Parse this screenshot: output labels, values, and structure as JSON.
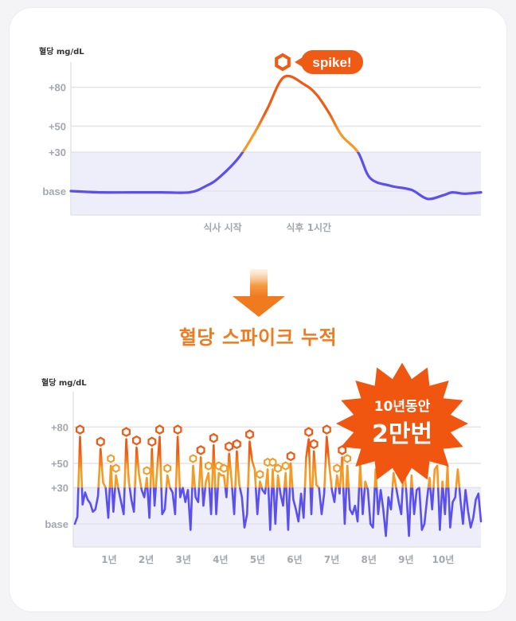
{
  "headline": "혈당 스파이크 누적",
  "colors": {
    "low": "#5b4ff0",
    "mid": "#f59a24",
    "high": "#ef5a14",
    "band": "#eeeefa",
    "grid": "#e3e3e8"
  },
  "chart_data": [
    {
      "type": "line",
      "ylabel": "혈당 mg/dL",
      "y_ticks": [
        "+80",
        "+50",
        "+30",
        "base"
      ],
      "y_tick_values": [
        80,
        50,
        30,
        0
      ],
      "x_labels": [
        "식사 시작",
        "식후 1시간"
      ],
      "x_label_positions": [
        0.37,
        0.58
      ],
      "annotation": "spike!",
      "x": [
        0.0,
        0.07,
        0.15,
        0.22,
        0.29,
        0.33,
        0.36,
        0.41,
        0.45,
        0.48,
        0.52,
        0.57,
        0.6,
        0.63,
        0.66,
        0.7,
        0.73,
        0.78,
        0.83,
        0.87,
        0.91,
        0.93,
        0.96,
        1.0
      ],
      "values": [
        0,
        -1,
        -1,
        -1,
        -1,
        4,
        10,
        26,
        46,
        64,
        88,
        82,
        74,
        60,
        43,
        30,
        10,
        4,
        1,
        -6,
        -3,
        -1,
        -2,
        -1
      ]
    },
    {
      "type": "line",
      "ylabel": "혈당 mg/dL",
      "y_ticks": [
        "+80",
        "+50",
        "+30",
        "base"
      ],
      "y_tick_values": [
        80,
        50,
        30,
        0
      ],
      "x_labels": [
        "1년",
        "2년",
        "3년",
        "4년",
        "5년",
        "6년",
        "7년",
        "8년",
        "9년",
        "10년"
      ],
      "values": [
        0,
        6,
        72,
        16,
        26,
        20,
        17,
        10,
        12,
        23,
        62,
        34,
        30,
        5,
        48,
        10,
        40,
        28,
        18,
        8,
        70,
        35,
        20,
        10,
        63,
        40,
        28,
        22,
        38,
        5,
        62,
        15,
        45,
        72,
        8,
        12,
        40,
        30,
        26,
        8,
        72,
        22,
        30,
        18,
        28,
        -5,
        48,
        22,
        18,
        55,
        15,
        35,
        42,
        8,
        65,
        8,
        42,
        40,
        40,
        22,
        58,
        35,
        8,
        60,
        32,
        22,
        -3,
        8,
        68,
        52,
        45,
        8,
        35,
        28,
        25,
        45,
        -5,
        45,
        0,
        40,
        25,
        15,
        42,
        -5,
        50,
        20,
        12,
        2,
        25,
        5,
        55,
        70,
        8,
        60,
        32,
        30,
        8,
        25,
        72,
        48,
        28,
        18,
        40,
        25,
        55,
        0,
        48,
        12,
        8,
        15,
        2,
        50,
        8,
        35,
        28,
        0,
        -3,
        45,
        8,
        28,
        12,
        -10,
        22,
        12,
        42,
        30,
        18,
        8,
        50,
        25,
        -10,
        40,
        8,
        28,
        30,
        -5,
        0,
        20,
        38,
        12,
        45,
        48,
        -5,
        35,
        8,
        48,
        -3,
        18,
        22,
        45,
        20,
        0,
        28,
        10,
        -3,
        5,
        20,
        25,
        2
      ],
      "spike_count": 32
    }
  ],
  "badge": {
    "line1": "10년동안",
    "line2": "2만번"
  }
}
